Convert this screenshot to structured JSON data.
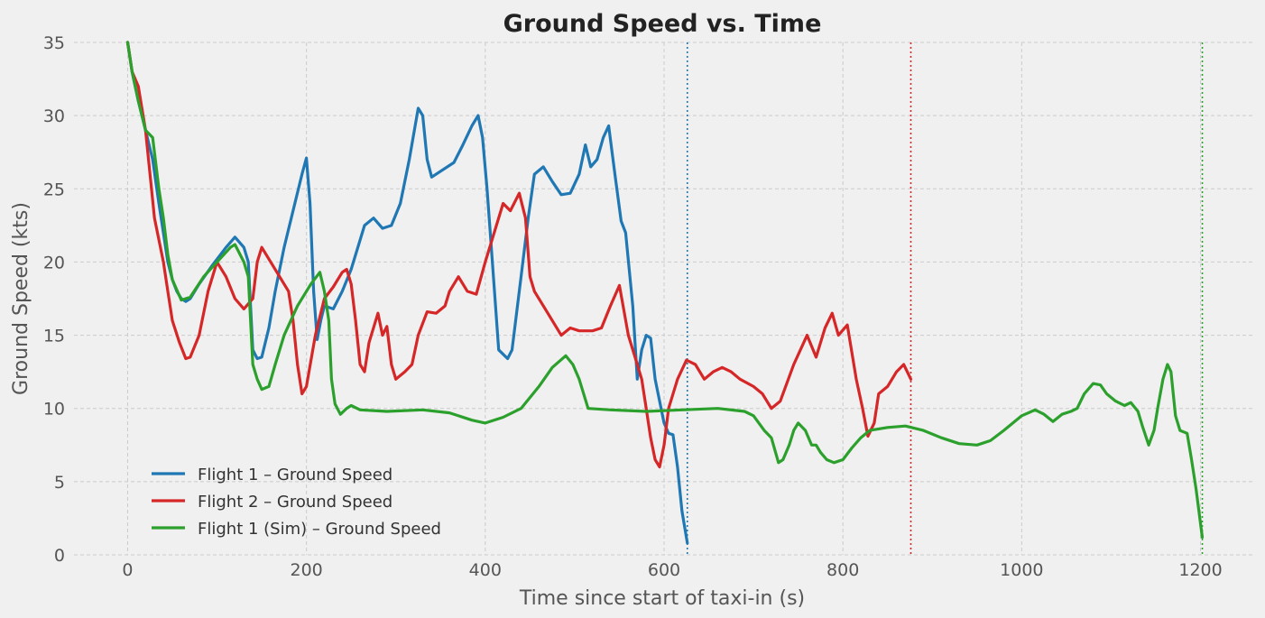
{
  "chart_data": {
    "type": "line",
    "title": "Ground Speed vs. Time",
    "xlabel": "Time since start of taxi-in (s)",
    "ylabel": "Ground Speed (kts)",
    "xlim": [
      -60,
      1260
    ],
    "ylim": [
      0,
      35
    ],
    "xticks": [
      0,
      200,
      400,
      600,
      800,
      1000,
      1200
    ],
    "yticks": [
      0,
      5,
      10,
      15,
      20,
      25,
      30,
      35
    ],
    "grid": true,
    "legend_position": "lower-left",
    "series": [
      {
        "name": "Flight 1 – Ground Speed",
        "color": "#1f77b4",
        "end_marker": 626,
        "points": [
          [
            0,
            35
          ],
          [
            5,
            33
          ],
          [
            12,
            31
          ],
          [
            20,
            29
          ],
          [
            28,
            27
          ],
          [
            35,
            24
          ],
          [
            40,
            22
          ],
          [
            45,
            20
          ],
          [
            50,
            18.8
          ],
          [
            55,
            18
          ],
          [
            60,
            17.5
          ],
          [
            65,
            17.3
          ],
          [
            70,
            17.5
          ],
          [
            80,
            18.5
          ],
          [
            95,
            19.8
          ],
          [
            110,
            21
          ],
          [
            120,
            21.7
          ],
          [
            130,
            21
          ],
          [
            135,
            20
          ],
          [
            140,
            14
          ],
          [
            145,
            13.4
          ],
          [
            150,
            13.5
          ],
          [
            158,
            15.5
          ],
          [
            165,
            18
          ],
          [
            175,
            21
          ],
          [
            185,
            23.5
          ],
          [
            195,
            26
          ],
          [
            200,
            27.1
          ],
          [
            204,
            24
          ],
          [
            208,
            18
          ],
          [
            212,
            14.7
          ],
          [
            216,
            16
          ],
          [
            220,
            17
          ],
          [
            230,
            16.8
          ],
          [
            240,
            18
          ],
          [
            250,
            19.5
          ],
          [
            265,
            22.5
          ],
          [
            275,
            23
          ],
          [
            285,
            22.3
          ],
          [
            295,
            22.5
          ],
          [
            305,
            24
          ],
          [
            315,
            27
          ],
          [
            325,
            30.5
          ],
          [
            330,
            30
          ],
          [
            335,
            27
          ],
          [
            340,
            25.8
          ],
          [
            350,
            26.2
          ],
          [
            365,
            26.8
          ],
          [
            375,
            28
          ],
          [
            385,
            29.3
          ],
          [
            392,
            30
          ],
          [
            397,
            28.5
          ],
          [
            402,
            25
          ],
          [
            408,
            20
          ],
          [
            415,
            14
          ],
          [
            425,
            13.4
          ],
          [
            430,
            14
          ],
          [
            440,
            19
          ],
          [
            448,
            23
          ],
          [
            455,
            26
          ],
          [
            465,
            26.5
          ],
          [
            475,
            25.5
          ],
          [
            485,
            24.6
          ],
          [
            495,
            24.7
          ],
          [
            505,
            26
          ],
          [
            512,
            28
          ],
          [
            518,
            26.5
          ],
          [
            525,
            27
          ],
          [
            532,
            28.5
          ],
          [
            538,
            29.3
          ],
          [
            545,
            26
          ],
          [
            552,
            22.8
          ],
          [
            557,
            22
          ],
          [
            565,
            17
          ],
          [
            570,
            12
          ],
          [
            575,
            14
          ],
          [
            580,
            15
          ],
          [
            585,
            14.8
          ],
          [
            590,
            12
          ],
          [
            600,
            9
          ],
          [
            605,
            8.3
          ],
          [
            610,
            8.2
          ],
          [
            615,
            6
          ],
          [
            620,
            3
          ],
          [
            626,
            0.8
          ]
        ]
      },
      {
        "name": "Flight 2 – Ground Speed",
        "color": "#d62728",
        "end_marker": 876,
        "points": [
          [
            0,
            35
          ],
          [
            5,
            33
          ],
          [
            12,
            32
          ],
          [
            20,
            29
          ],
          [
            30,
            23
          ],
          [
            40,
            20
          ],
          [
            45,
            18
          ],
          [
            50,
            16
          ],
          [
            58,
            14.5
          ],
          [
            65,
            13.4
          ],
          [
            70,
            13.5
          ],
          [
            80,
            15
          ],
          [
            90,
            18
          ],
          [
            100,
            20
          ],
          [
            110,
            19
          ],
          [
            120,
            17.5
          ],
          [
            130,
            16.8
          ],
          [
            140,
            17.5
          ],
          [
            145,
            20
          ],
          [
            150,
            21
          ],
          [
            160,
            20
          ],
          [
            170,
            19
          ],
          [
            180,
            18
          ],
          [
            185,
            16
          ],
          [
            190,
            13
          ],
          [
            195,
            11
          ],
          [
            200,
            11.5
          ],
          [
            210,
            15
          ],
          [
            220,
            17.5
          ],
          [
            230,
            18.3
          ],
          [
            240,
            19.3
          ],
          [
            245,
            19.5
          ],
          [
            250,
            18.5
          ],
          [
            255,
            16
          ],
          [
            260,
            13
          ],
          [
            265,
            12.5
          ],
          [
            270,
            14.5
          ],
          [
            280,
            16.5
          ],
          [
            285,
            15
          ],
          [
            290,
            15.6
          ],
          [
            295,
            13
          ],
          [
            300,
            12
          ],
          [
            310,
            12.5
          ],
          [
            318,
            13
          ],
          [
            325,
            15
          ],
          [
            335,
            16.6
          ],
          [
            345,
            16.5
          ],
          [
            355,
            17
          ],
          [
            360,
            18
          ],
          [
            370,
            19
          ],
          [
            380,
            18
          ],
          [
            390,
            17.8
          ],
          [
            400,
            20
          ],
          [
            410,
            22
          ],
          [
            420,
            24
          ],
          [
            428,
            23.5
          ],
          [
            438,
            24.7
          ],
          [
            445,
            23
          ],
          [
            450,
            19
          ],
          [
            455,
            18
          ],
          [
            465,
            17
          ],
          [
            475,
            16
          ],
          [
            485,
            15
          ],
          [
            495,
            15.5
          ],
          [
            505,
            15.3
          ],
          [
            520,
            15.3
          ],
          [
            530,
            15.5
          ],
          [
            540,
            17
          ],
          [
            550,
            18.4
          ],
          [
            560,
            15
          ],
          [
            570,
            13
          ],
          [
            575,
            12
          ],
          [
            580,
            10
          ],
          [
            585,
            8
          ],
          [
            590,
            6.5
          ],
          [
            595,
            6
          ],
          [
            600,
            7.5
          ],
          [
            605,
            10
          ],
          [
            615,
            12
          ],
          [
            625,
            13.3
          ],
          [
            635,
            13
          ],
          [
            645,
            12
          ],
          [
            655,
            12.5
          ],
          [
            665,
            12.8
          ],
          [
            675,
            12.5
          ],
          [
            685,
            12
          ],
          [
            700,
            11.5
          ],
          [
            710,
            11
          ],
          [
            720,
            10
          ],
          [
            730,
            10.5
          ],
          [
            745,
            13
          ],
          [
            760,
            15
          ],
          [
            770,
            13.5
          ],
          [
            780,
            15.5
          ],
          [
            788,
            16.5
          ],
          [
            795,
            15
          ],
          [
            805,
            15.7
          ],
          [
            815,
            12
          ],
          [
            822,
            10
          ],
          [
            828,
            8.1
          ],
          [
            835,
            9
          ],
          [
            840,
            11
          ],
          [
            850,
            11.5
          ],
          [
            860,
            12.5
          ],
          [
            868,
            13
          ],
          [
            876,
            12
          ]
        ]
      },
      {
        "name": "Flight 1 (Sim) – Ground Speed",
        "color": "#2ca02c",
        "end_marker": 1202,
        "points": [
          [
            0,
            35
          ],
          [
            5,
            33
          ],
          [
            12,
            31
          ],
          [
            20,
            29
          ],
          [
            28,
            28.5
          ],
          [
            35,
            25
          ],
          [
            40,
            23
          ],
          [
            45,
            20.5
          ],
          [
            50,
            18.8
          ],
          [
            60,
            17.4
          ],
          [
            70,
            17.6
          ],
          [
            85,
            19
          ],
          [
            100,
            20
          ],
          [
            115,
            21
          ],
          [
            120,
            21.2
          ],
          [
            130,
            20
          ],
          [
            135,
            19
          ],
          [
            140,
            13
          ],
          [
            145,
            12
          ],
          [
            150,
            11.3
          ],
          [
            158,
            11.5
          ],
          [
            165,
            13
          ],
          [
            175,
            15
          ],
          [
            190,
            17
          ],
          [
            205,
            18.5
          ],
          [
            215,
            19.3
          ],
          [
            220,
            18
          ],
          [
            225,
            16
          ],
          [
            228,
            12
          ],
          [
            232,
            10.3
          ],
          [
            238,
            9.6
          ],
          [
            245,
            10
          ],
          [
            250,
            10.2
          ],
          [
            260,
            9.9
          ],
          [
            290,
            9.8
          ],
          [
            330,
            9.9
          ],
          [
            360,
            9.7
          ],
          [
            385,
            9.2
          ],
          [
            400,
            9
          ],
          [
            420,
            9.4
          ],
          [
            440,
            10
          ],
          [
            460,
            11.5
          ],
          [
            475,
            12.8
          ],
          [
            490,
            13.6
          ],
          [
            498,
            13
          ],
          [
            505,
            12
          ],
          [
            515,
            10
          ],
          [
            540,
            9.9
          ],
          [
            580,
            9.8
          ],
          [
            620,
            9.9
          ],
          [
            660,
            10
          ],
          [
            690,
            9.8
          ],
          [
            700,
            9.5
          ],
          [
            712,
            8.5
          ],
          [
            720,
            8
          ],
          [
            728,
            6.3
          ],
          [
            733,
            6.5
          ],
          [
            740,
            7.5
          ],
          [
            745,
            8.5
          ],
          [
            750,
            9
          ],
          [
            758,
            8.5
          ],
          [
            765,
            7.5
          ],
          [
            770,
            7.5
          ],
          [
            775,
            7
          ],
          [
            782,
            6.5
          ],
          [
            790,
            6.3
          ],
          [
            800,
            6.5
          ],
          [
            810,
            7.3
          ],
          [
            820,
            8
          ],
          [
            830,
            8.5
          ],
          [
            850,
            8.7
          ],
          [
            870,
            8.8
          ],
          [
            890,
            8.5
          ],
          [
            910,
            8
          ],
          [
            930,
            7.6
          ],
          [
            950,
            7.5
          ],
          [
            965,
            7.8
          ],
          [
            980,
            8.5
          ],
          [
            1000,
            9.5
          ],
          [
            1015,
            9.9
          ],
          [
            1025,
            9.6
          ],
          [
            1035,
            9.1
          ],
          [
            1045,
            9.6
          ],
          [
            1055,
            9.8
          ],
          [
            1062,
            10
          ],
          [
            1070,
            11
          ],
          [
            1080,
            11.7
          ],
          [
            1088,
            11.6
          ],
          [
            1095,
            11
          ],
          [
            1105,
            10.5
          ],
          [
            1115,
            10.2
          ],
          [
            1122,
            10.4
          ],
          [
            1130,
            9.8
          ],
          [
            1135,
            8.8
          ],
          [
            1142,
            7.5
          ],
          [
            1148,
            8.5
          ],
          [
            1152,
            10
          ],
          [
            1158,
            12
          ],
          [
            1163,
            13
          ],
          [
            1167,
            12.5
          ],
          [
            1172,
            9.5
          ],
          [
            1177,
            8.5
          ],
          [
            1185,
            8.3
          ],
          [
            1190,
            6.5
          ],
          [
            1195,
            4.5
          ],
          [
            1202,
            1.2
          ]
        ]
      }
    ]
  }
}
